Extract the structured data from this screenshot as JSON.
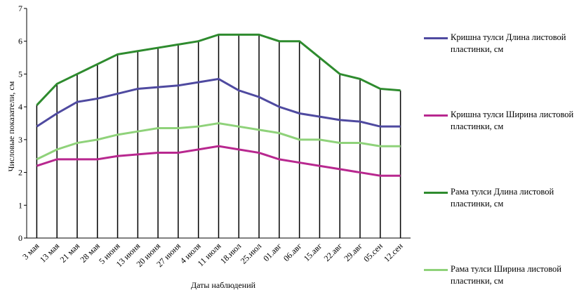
{
  "chart_data": {
    "type": "line",
    "y_label": "Числовые показатели, см",
    "x_label": "Даты наблюдений",
    "categories": [
      "3 мая",
      "13 мая",
      "21 мая",
      "28 мая",
      "5 июня",
      "13 июня",
      "20 июня",
      "27 июня",
      "4 июля",
      "11 июля",
      "18.июл",
      "25.июл",
      "01.авг",
      "06.авг",
      "15.авг",
      "22.авг",
      "29.авг",
      "05.сен",
      "12.сен"
    ],
    "series": [
      {
        "name": "Кришна тулси Длина листовой пластинки, см",
        "color": "#4f4aa0",
        "values": [
          3.4,
          3.8,
          4.15,
          4.25,
          4.4,
          4.55,
          4.6,
          4.65,
          4.75,
          4.85,
          4.5,
          4.3,
          4.0,
          3.8,
          3.7,
          3.6,
          3.55,
          3.4,
          3.4
        ]
      },
      {
        "name": "Кришна тулси Ширина листовой пластинки, см",
        "color": "#b8288f",
        "values": [
          2.2,
          2.4,
          2.4,
          2.4,
          2.5,
          2.55,
          2.6,
          2.6,
          2.7,
          2.8,
          2.7,
          2.6,
          2.4,
          2.3,
          2.2,
          2.1,
          2.0,
          1.9,
          1.9
        ]
      },
      {
        "name": "Рама тулси Длина листовой пластинки, см",
        "color": "#2e8b2e",
        "values": [
          4.05,
          4.7,
          5.0,
          5.3,
          5.6,
          5.7,
          5.8,
          5.9,
          6.0,
          6.2,
          6.2,
          6.2,
          6.0,
          6.0,
          5.5,
          5.0,
          4.85,
          4.55,
          4.5
        ]
      },
      {
        "name": "Рама тулси Ширина листовой пластинки, см",
        "color": "#8fd27a",
        "values": [
          2.4,
          2.7,
          2.9,
          3.0,
          3.15,
          3.25,
          3.35,
          3.35,
          3.4,
          3.5,
          3.4,
          3.3,
          3.2,
          3.0,
          3.0,
          2.9,
          2.9,
          2.8,
          2.8
        ]
      }
    ],
    "ylim": [
      0,
      7
    ],
    "yticks": [
      0,
      1,
      2,
      3,
      4,
      5,
      6,
      7
    ],
    "drop_lines": true
  }
}
